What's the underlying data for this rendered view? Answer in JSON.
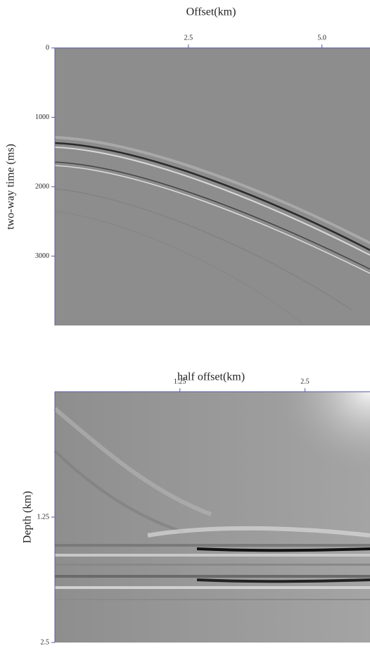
{
  "chart_data": [
    {
      "type": "image",
      "xlabel": "Offset(km)",
      "ylabel": "two-way time (ms)",
      "xlim": [
        0,
        5.9
      ],
      "xticks": [
        2.5,
        {
          "value": 5.0,
          "label": "5.0"
        }
      ],
      "ylim": [
        0,
        4000
      ],
      "yticks": [
        0,
        1000,
        2000,
        3000
      ]
    },
    {
      "type": "image",
      "xlabel": "half offset(km)",
      "ylabel": "Depth (km)",
      "xlim": [
        0,
        3.15
      ],
      "xticks": [
        1.25,
        2.5
      ],
      "ylim": [
        0,
        2.5
      ],
      "yticks": [
        1.25,
        2.5
      ]
    }
  ]
}
